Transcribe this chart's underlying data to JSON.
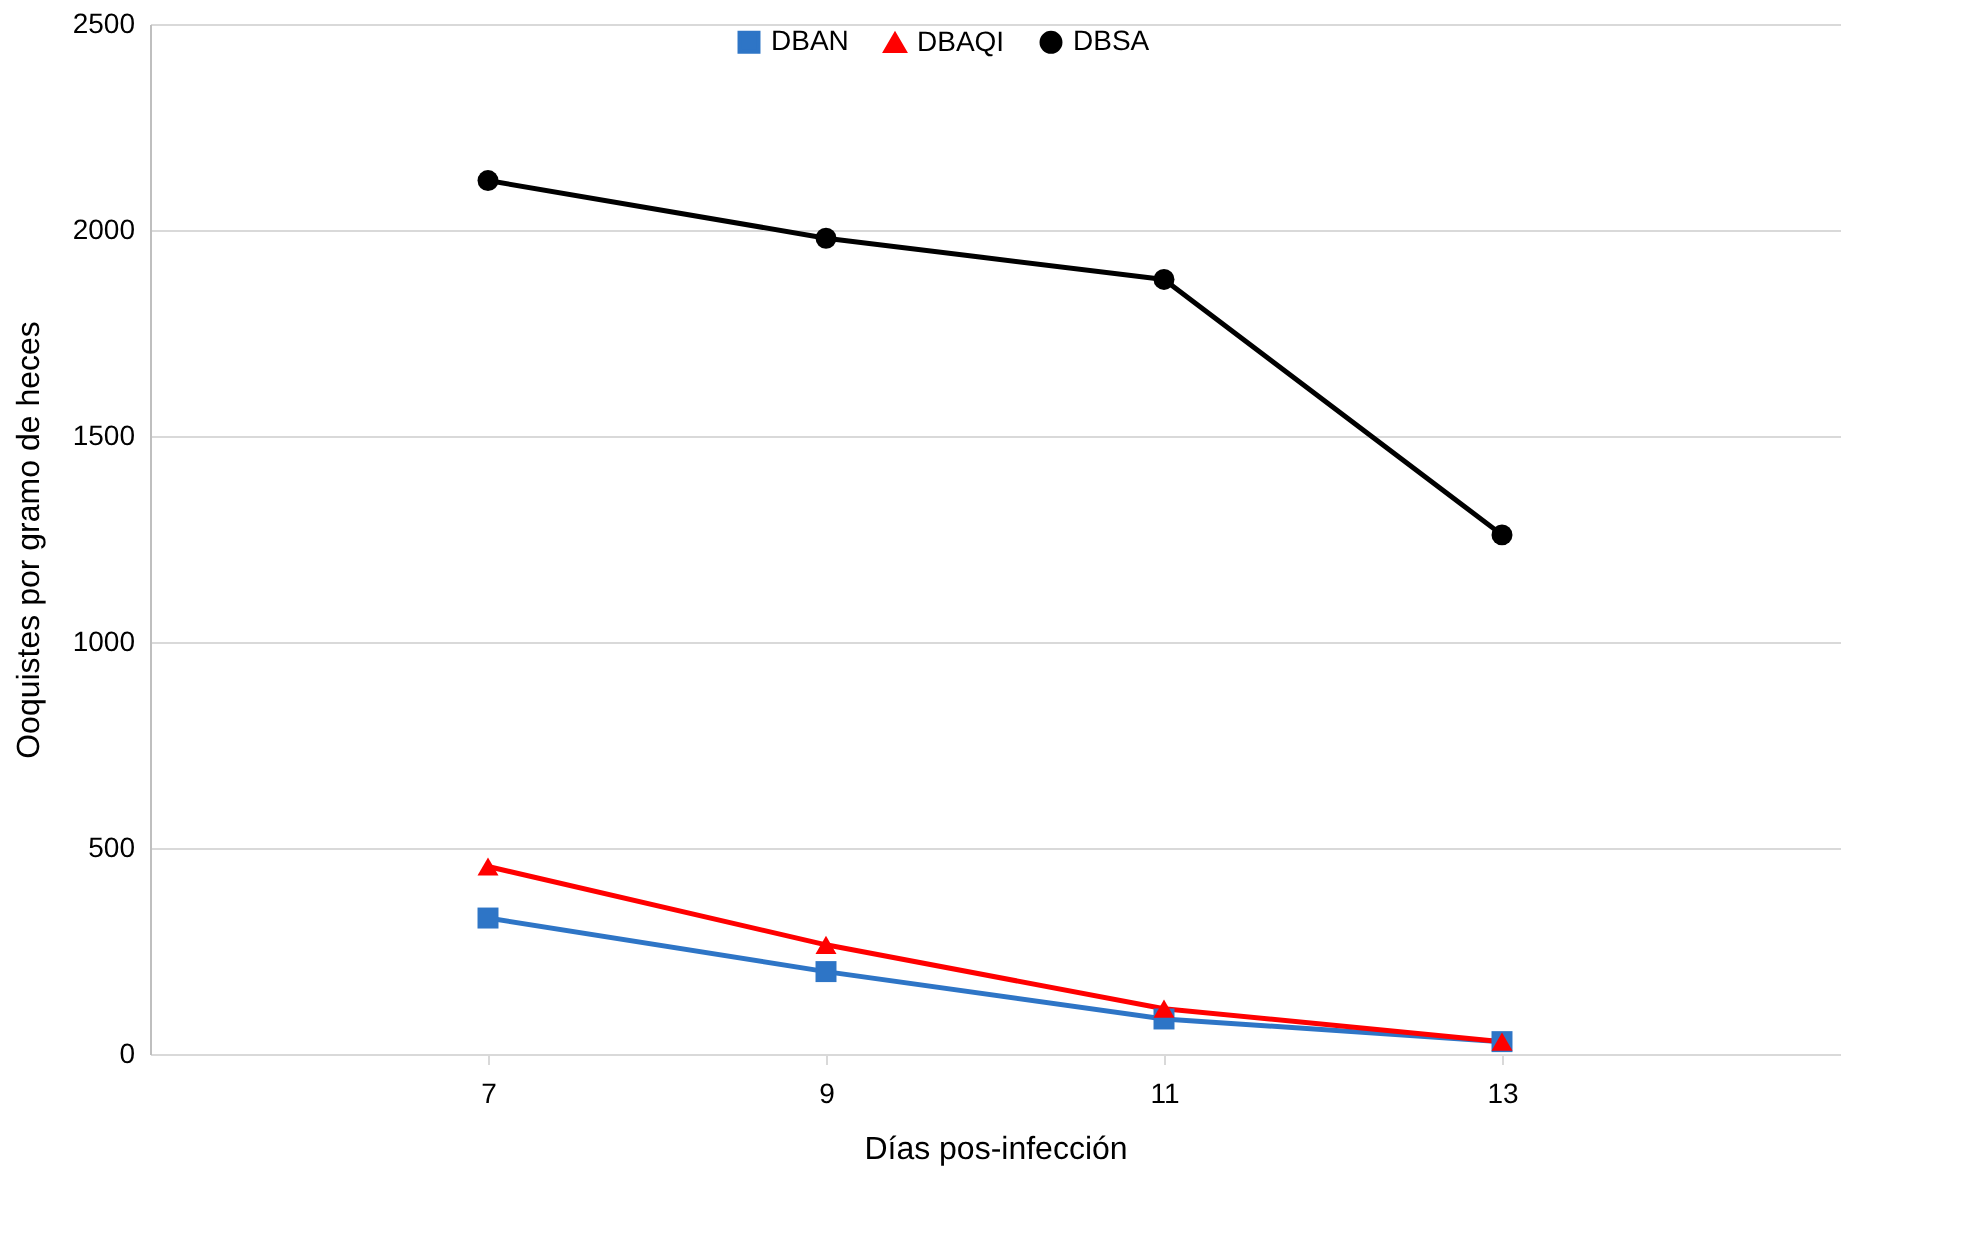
{
  "chart_data": {
    "type": "line",
    "xlabel": "Días pos-infección",
    "ylabel": "Ooquistes por gramo de heces",
    "categories": [
      "7",
      "9",
      "11",
      "13"
    ],
    "series": [
      {
        "name": "DBAN",
        "color": "#2e75c6",
        "marker": "square",
        "values": [
          330,
          200,
          85,
          30
        ]
      },
      {
        "name": "DBAQI",
        "color": "#ff0000",
        "marker": "triangle",
        "values": [
          455,
          265,
          110,
          30
        ]
      },
      {
        "name": "DBSA",
        "color": "#000000",
        "marker": "circle",
        "values": [
          2120,
          1980,
          1880,
          1260
        ]
      }
    ],
    "ylim": [
      0,
      2500
    ],
    "yticks": [
      0,
      500,
      1000,
      1500,
      2000,
      2500
    ],
    "grid": "y",
    "legend": "top",
    "line_style": "solid"
  }
}
